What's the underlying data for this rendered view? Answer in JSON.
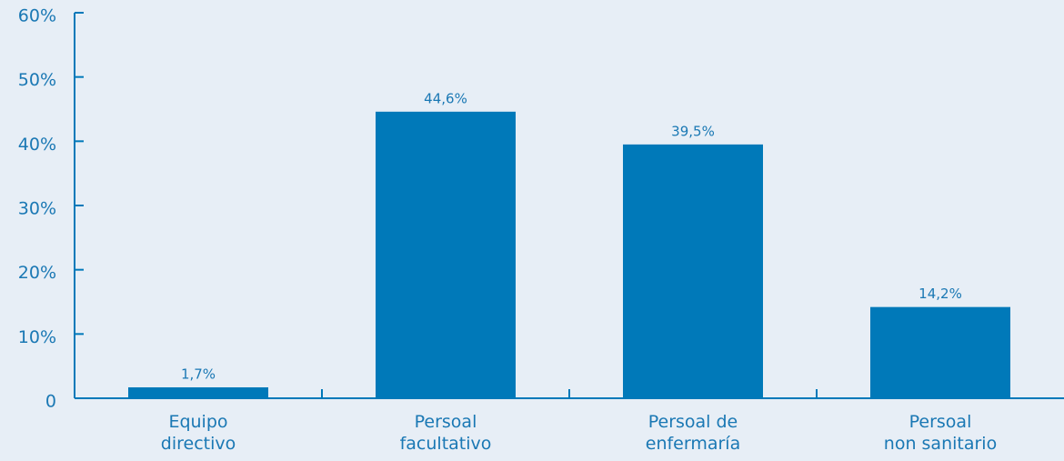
{
  "chart_data": {
    "type": "bar",
    "categories": [
      "Equipo\ndirectivo",
      "Persoal\nfacultativo",
      "Persoal de\nenfermaría",
      "Persoal\nnon sanitario"
    ],
    "values": [
      1.7,
      44.6,
      39.5,
      14.2
    ],
    "value_labels": [
      "1,7%",
      "44,6%",
      "39,5%",
      "14,2%"
    ],
    "color": "#0079b9",
    "ylim": [
      0,
      60
    ],
    "yticks": [
      0,
      {
        "value": 10,
        "label": "10%"
      },
      {
        "value": 20,
        "label": "20%"
      },
      {
        "value": 30,
        "label": "30%"
      },
      {
        "value": 40,
        "label": "40%"
      },
      {
        "value": 50,
        "label": "50%"
      },
      {
        "value": 60,
        "label": "60%"
      }
    ]
  }
}
